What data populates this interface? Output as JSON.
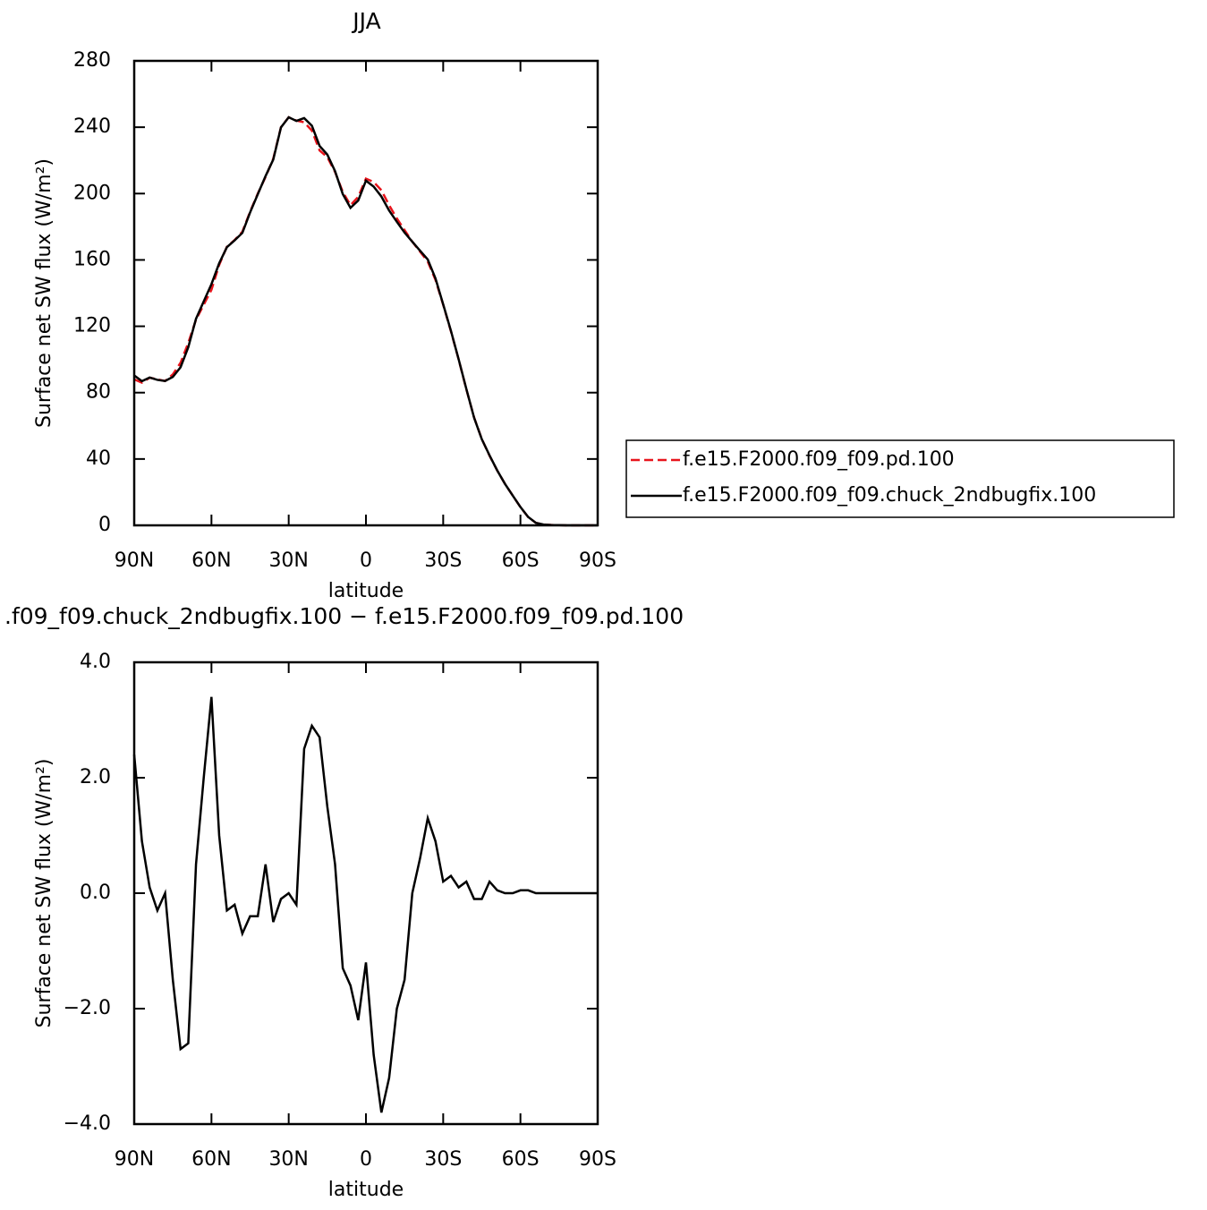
{
  "chart_data": [
    {
      "type": "line",
      "title": "JJA",
      "xlabel": "latitude",
      "ylabel": "Surface net SW flux (W/m²)",
      "x": [
        90,
        87,
        84,
        81,
        78,
        75,
        72,
        69,
        66,
        63,
        60,
        57,
        54,
        51,
        48,
        45,
        42,
        39,
        36,
        33,
        30,
        27,
        24,
        21,
        18,
        15,
        12,
        9,
        6,
        3,
        0,
        -3,
        -6,
        -9,
        -12,
        -15,
        -18,
        -21,
        -24,
        -27,
        -30,
        -33,
        -36,
        -39,
        -42,
        -45,
        -48,
        -51,
        -54,
        -57,
        -60,
        -63,
        -66,
        -69,
        -72,
        -75,
        -78,
        -81,
        -84,
        -87,
        -90
      ],
      "series": [
        {
          "name": "f.e15.F2000.f09_f09.pd.100",
          "color": "#e8141c",
          "linestyle": "dashed",
          "values": [
            88,
            86,
            89,
            88,
            87,
            91,
            98,
            110,
            124,
            133,
            142,
            157,
            168,
            172,
            177,
            189,
            200,
            210,
            221,
            240,
            246,
            244,
            243,
            238,
            226,
            222,
            213,
            201,
            193,
            198,
            209,
            207,
            202,
            193,
            185,
            178,
            171,
            165,
            159,
            148,
            133,
            117,
            100,
            82,
            65,
            52,
            42,
            33,
            25,
            18,
            11,
            5,
            1.5,
            0.5,
            0.2,
            0.1,
            0,
            0,
            0,
            0,
            0
          ]
        },
        {
          "name": "f.e15.F2000.f09_f09.chuck_2ndbugfix.100",
          "color": "#000000",
          "linestyle": "solid",
          "values": [
            90.4,
            86.9,
            89.1,
            87.7,
            87,
            89.5,
            95.3,
            107.4,
            124.5,
            135,
            145.4,
            158,
            167.7,
            171.8,
            176.3,
            188.6,
            199.6,
            210.5,
            220.5,
            239.9,
            246,
            243.8,
            245.5,
            240.9,
            228.7,
            223.5,
            213.5,
            199.7,
            191.4,
            195.8,
            207.8,
            204.2,
            198.2,
            189.8,
            183,
            176.5,
            171,
            165.6,
            160.3,
            148.9,
            133.2,
            117.3,
            100.1,
            82.2,
            64.9,
            51.9,
            42.2,
            33.05,
            25,
            18,
            11.05,
            5.05,
            1.5,
            0.5,
            0.2,
            0.1,
            0,
            0,
            0,
            0,
            0
          ]
        }
      ],
      "xlim": [
        90,
        -90
      ],
      "xticks": [
        {
          "value": 90,
          "label": "90N"
        },
        {
          "value": 60,
          "label": "60N"
        },
        {
          "value": 30,
          "label": "30N"
        },
        0,
        {
          "value": -30,
          "label": "30S"
        },
        {
          "value": -60,
          "label": "60S"
        },
        {
          "value": -90,
          "label": "90S"
        }
      ],
      "ylim": [
        0,
        280
      ],
      "yticks": [
        0,
        40,
        80,
        120,
        160,
        200,
        240,
        280
      ],
      "legend": "outside-right"
    },
    {
      "type": "line",
      "title": ".f09_f09.chuck_2ndbugfix.100 − f.e15.F2000.f09_f09.pd.100",
      "xlabel": "latitude",
      "ylabel": "Surface net SW flux (W/m²)",
      "x": [
        90,
        87,
        84,
        81,
        78,
        75,
        72,
        69,
        66,
        63,
        60,
        57,
        54,
        51,
        48,
        45,
        42,
        39,
        36,
        33,
        30,
        27,
        24,
        21,
        18,
        15,
        12,
        9,
        6,
        3,
        0,
        -3,
        -6,
        -9,
        -12,
        -15,
        -18,
        -21,
        -24,
        -27,
        -30,
        -33,
        -36,
        -39,
        -42,
        -45,
        -48,
        -51,
        -54,
        -57,
        -60,
        -63,
        -66,
        -69,
        -72,
        -75,
        -78,
        -81,
        -84,
        -87,
        -90
      ],
      "series": [
        {
          "color": "#000000",
          "linestyle": "solid",
          "values": [
            2.4,
            0.9,
            0.1,
            -0.3,
            0,
            -1.5,
            -2.7,
            -2.6,
            0.5,
            2.0,
            3.4,
            1.0,
            -0.3,
            -0.2,
            -0.7,
            -0.4,
            -0.4,
            0.5,
            -0.5,
            -0.1,
            0,
            -0.2,
            2.5,
            2.9,
            2.7,
            1.5,
            0.5,
            -1.3,
            -1.6,
            -2.2,
            -1.2,
            -2.8,
            -3.8,
            -3.2,
            -2.0,
            -1.5,
            0,
            0.6,
            1.3,
            0.9,
            0.2,
            0.3,
            0.1,
            0.2,
            -0.1,
            -0.1,
            0.2,
            0.05,
            0,
            0,
            0.05,
            0.05,
            0,
            0,
            0,
            0,
            0,
            0,
            0,
            0,
            0
          ]
        }
      ],
      "xlim": [
        90,
        -90
      ],
      "xticks": [
        {
          "value": 90,
          "label": "90N"
        },
        {
          "value": 60,
          "label": "60N"
        },
        {
          "value": 30,
          "label": "30N"
        },
        0,
        {
          "value": -30,
          "label": "30S"
        },
        {
          "value": -60,
          "label": "60S"
        },
        {
          "value": -90,
          "label": "90S"
        }
      ],
      "ylim": [
        -4,
        4
      ],
      "yticks": [
        {
          "value": -4,
          "label": "−4.0"
        },
        {
          "value": -2,
          "label": "−2.0"
        },
        {
          "value": 0,
          "label": "0.0"
        },
        {
          "value": 2,
          "label": "2.0"
        },
        {
          "value": 4,
          "label": "4.0"
        }
      ]
    }
  ]
}
